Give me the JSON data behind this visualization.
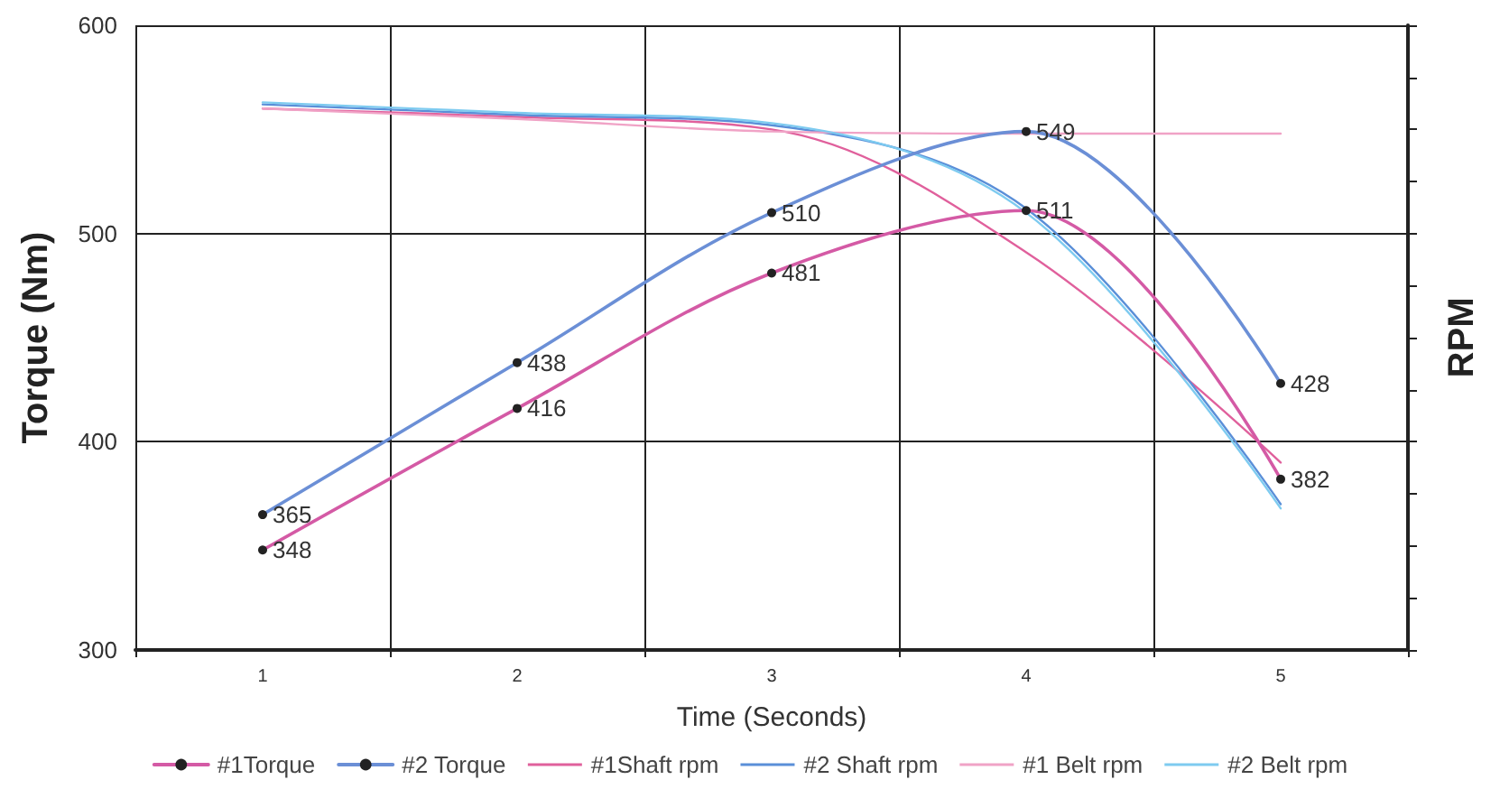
{
  "chart_data": {
    "type": "line",
    "xlabel": "Time (Seconds)",
    "ylabel": "Torque (Nm)",
    "y2label": "RPM",
    "categories": [
      "1",
      "2",
      "3",
      "4",
      "5"
    ],
    "ylim": [
      300,
      600
    ],
    "yticks": [
      300,
      400,
      500,
      600
    ],
    "grid": true,
    "legend": "bottom",
    "line_style": "solid",
    "series": [
      {
        "name": "#1Torque",
        "color": "#d45aa5",
        "values": [
          348,
          416,
          481,
          511,
          382
        ],
        "marker": "circle",
        "data_labels": true
      },
      {
        "name": "#2 Torque",
        "color": "#6b8fd6",
        "values": [
          365,
          438,
          510,
          549,
          428
        ],
        "marker": "circle",
        "data_labels": true
      },
      {
        "name": "#1Shaft rpm",
        "color": "#e0609c",
        "values": [
          560,
          556,
          550,
          491,
          390
        ],
        "marker": "none"
      },
      {
        "name": "#2 Shaft rpm",
        "color": "#5a8fd8",
        "values": [
          562,
          557,
          552,
          512,
          370
        ],
        "marker": "none"
      },
      {
        "name": "#1 Belt rpm",
        "color": "#f0a3c6",
        "values": [
          560,
          555,
          549,
          548,
          548
        ],
        "marker": "none"
      },
      {
        "name": "#2 Belt rpm",
        "color": "#7ecbf0",
        "values": [
          563,
          558,
          553,
          510,
          368
        ],
        "marker": "none"
      }
    ]
  }
}
